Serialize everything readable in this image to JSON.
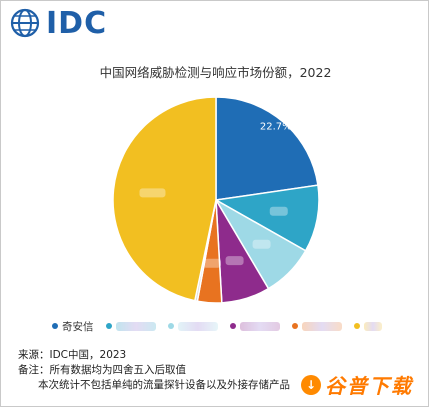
{
  "logo": {
    "text": "IDC"
  },
  "chart_data": {
    "type": "pie",
    "title": "中国网络威胁检测与响应市场份额，2022",
    "slices": [
      {
        "name": "",
        "value": 22.7,
        "label": "22.7%",
        "color": "#1f6db5"
      },
      {
        "name": "",
        "value": 10.5,
        "label": "",
        "color": "#2ea5c7"
      },
      {
        "name": "",
        "value": 8.3,
        "label": "",
        "color": "#9ed9e6"
      },
      {
        "name": "",
        "value": 7.6,
        "label": "",
        "color": "#8e2b8c"
      },
      {
        "name": "",
        "value": 3.8,
        "label": "",
        "color": "#e87320"
      },
      {
        "name": "",
        "value": 0.4,
        "label": "",
        "color": "#d9d9d9"
      },
      {
        "name": "",
        "value": 46.7,
        "label": "",
        "color": "#f2bf21"
      }
    ]
  },
  "legend": {
    "items": [
      {
        "name": "奇安信",
        "color": "#1f6db5"
      },
      {
        "name": "",
        "color": "#2ea5c7"
      },
      {
        "name": "",
        "color": "#9ed9e6"
      },
      {
        "name": "",
        "color": "#8e2b8c"
      },
      {
        "name": "",
        "color": "#e87320"
      },
      {
        "name": "",
        "color": "#f2bf21"
      }
    ]
  },
  "footer": {
    "source": "来源：IDC中国，2023",
    "note": "备注：所有数据均为四舍五入后取值",
    "note2": "本次统计不包括单纯的流量探针设备以及外接存储产品"
  },
  "watermark": {
    "text": "谷普下载"
  }
}
